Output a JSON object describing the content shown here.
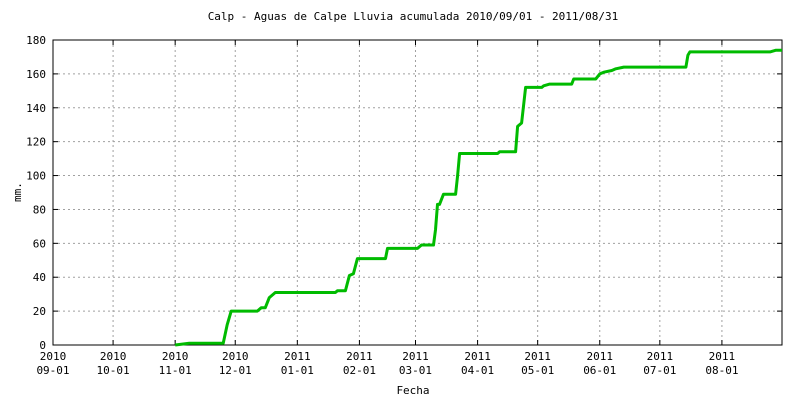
{
  "chart_data": {
    "type": "line",
    "title": "Calp - Aguas de Calpe Lluvia acumulada 2010/09/01 - 2011/08/31",
    "x_label": "Fecha",
    "y_label": "mm.",
    "grid": true,
    "xlim": [
      "2010-09-01",
      "2011-08-31"
    ],
    "ylim": [
      0,
      180
    ],
    "yticks": [
      0,
      20,
      40,
      60,
      80,
      100,
      120,
      140,
      160,
      180
    ],
    "xticks": [
      {
        "value": "2010-09-01",
        "label": [
          "2010",
          "09-01"
        ]
      },
      {
        "value": "2010-10-01",
        "label": [
          "2010",
          "10-01"
        ]
      },
      {
        "value": "2010-11-01",
        "label": [
          "2010",
          "11-01"
        ]
      },
      {
        "value": "2010-12-01",
        "label": [
          "2010",
          "12-01"
        ]
      },
      {
        "value": "2011-01-01",
        "label": [
          "2011",
          "01-01"
        ]
      },
      {
        "value": "2011-02-01",
        "label": [
          "2011",
          "02-01"
        ]
      },
      {
        "value": "2011-03-01",
        "label": [
          "2011",
          "03-01"
        ]
      },
      {
        "value": "2011-04-01",
        "label": [
          "2011",
          "04-01"
        ]
      },
      {
        "value": "2011-05-01",
        "label": [
          "2011",
          "05-01"
        ]
      },
      {
        "value": "2011-06-01",
        "label": [
          "2011",
          "06-01"
        ]
      },
      {
        "value": "2011-07-01",
        "label": [
          "2011",
          "07-01"
        ]
      },
      {
        "value": "2011-08-01",
        "label": [
          "2011",
          "08-01"
        ]
      }
    ],
    "x": [
      "2010-11-01",
      "2010-11-08",
      "2010-11-25",
      "2010-11-27",
      "2010-11-29",
      "2010-12-12",
      "2010-12-14",
      "2010-12-16",
      "2010-12-18",
      "2010-12-21",
      "2011-01-20",
      "2011-01-21",
      "2011-01-25",
      "2011-01-27",
      "2011-01-29",
      "2011-01-31",
      "2011-02-14",
      "2011-02-15",
      "2011-03-02",
      "2011-03-04",
      "2011-03-10",
      "2011-03-11",
      "2011-03-12",
      "2011-03-13",
      "2011-03-15",
      "2011-03-21",
      "2011-03-22",
      "2011-03-23",
      "2011-04-11",
      "2011-04-12",
      "2011-04-20",
      "2011-04-21",
      "2011-04-23",
      "2011-04-25",
      "2011-05-03",
      "2011-05-04",
      "2011-05-07",
      "2011-05-18",
      "2011-05-19",
      "2011-05-30",
      "2011-06-01",
      "2011-06-03",
      "2011-06-07",
      "2011-06-09",
      "2011-06-13",
      "2011-07-14",
      "2011-07-15",
      "2011-07-16",
      "2011-08-25",
      "2011-08-28",
      "2011-08-31"
    ],
    "series": [
      {
        "name": "Lluvia acumulada",
        "color": "#00bb00",
        "values": [
          0,
          1,
          1,
          12,
          20,
          20,
          22,
          22,
          28,
          31,
          31,
          32,
          32,
          41,
          42,
          51,
          51,
          57,
          57,
          59,
          59,
          68,
          83,
          83,
          89,
          89,
          100,
          113,
          113,
          114,
          114,
          129,
          131,
          152,
          152,
          153,
          154,
          154,
          157,
          157,
          160,
          161,
          162,
          163,
          164,
          164,
          171,
          173,
          173,
          174,
          174
        ]
      }
    ]
  }
}
